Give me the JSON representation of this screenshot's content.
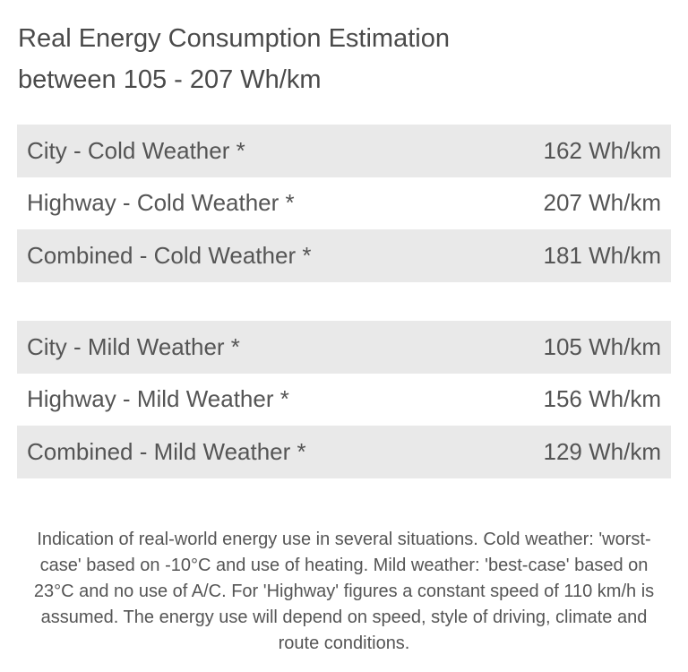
{
  "header": {
    "title": [
      "Real Energy Consumption Estimation",
      "between 105 - 207 Wh/km"
    ]
  },
  "tables": [
    {
      "rows": [
        [
          "City - Cold Weather *",
          "162 Wh/km"
        ],
        [
          "Highway - Cold Weather *",
          "207 Wh/km"
        ],
        [
          "Combined - Cold Weather *",
          "181 Wh/km"
        ]
      ]
    },
    {
      "rows": [
        [
          "City - Mild Weather *",
          "105 Wh/km"
        ],
        [
          "Highway - Mild Weather *",
          "156 Wh/km"
        ],
        [
          "Combined - Mild Weather *",
          "129 Wh/km"
        ]
      ]
    }
  ],
  "note": "Indication of real-world energy use in several situations. Cold weather: 'worst-case' based on -10°C and use of heating. Mild weather: 'best-case' based on 23°C and no use of A/C. For 'Highway' figures a constant speed of 110 km/h is assumed. The energy use will depend on speed, style of driving, climate and route conditions."
}
